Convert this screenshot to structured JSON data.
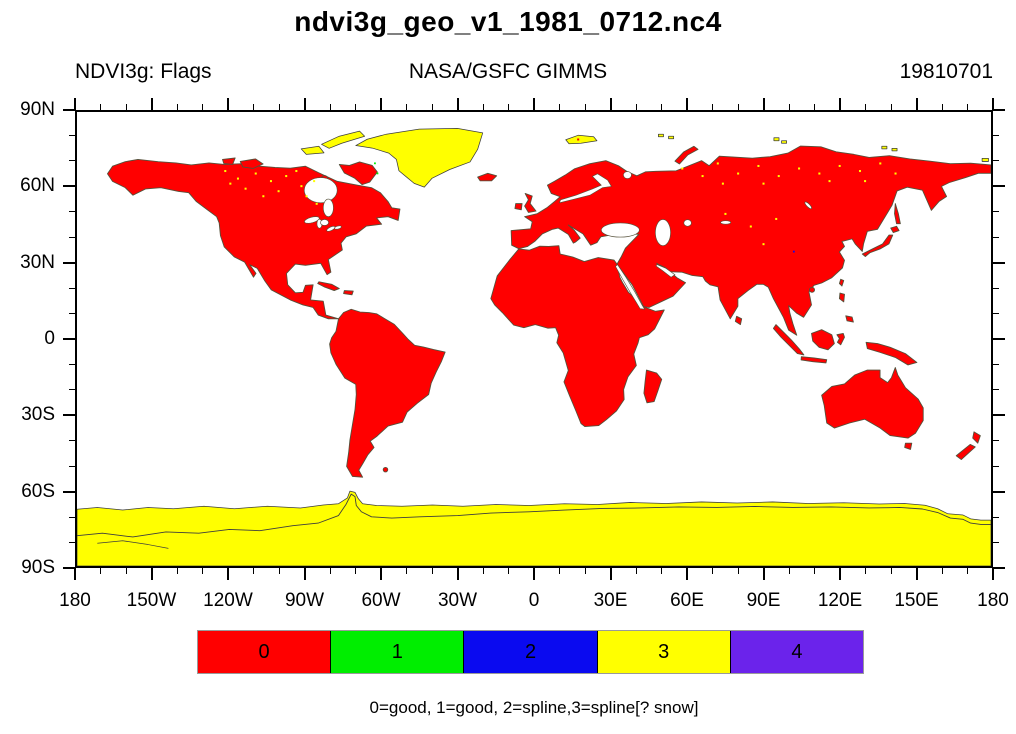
{
  "title": "ndvi3g_geo_v1_1981_0712.nc4",
  "header": {
    "left_label": "NDVI3g: Flags",
    "center_label": "NASA/GSFC GIMMS",
    "right_label": "19810701"
  },
  "axes": {
    "x": {
      "tick_labels": [
        "180",
        "150W",
        "120W",
        "90W",
        "60W",
        "30W",
        "0",
        "30E",
        "60E",
        "90E",
        "120E",
        "150E",
        "180"
      ],
      "major_step_deg": 30,
      "minor_step_deg": 10
    },
    "y": {
      "tick_labels": [
        "90N",
        "60N",
        "30N",
        "0",
        "30S",
        "60S",
        "90S"
      ],
      "major_step_deg": 30,
      "minor_step_deg": 10
    }
  },
  "legend": {
    "entries": [
      {
        "label": "0",
        "color": "#FF0000"
      },
      {
        "label": "1",
        "color": "#00EE00"
      },
      {
        "label": "2",
        "color": "#0A0AF0"
      },
      {
        "label": "3",
        "color": "#FFFF00"
      },
      {
        "label": "4",
        "color": "#6B23EB"
      }
    ]
  },
  "caption": "0=good, 1=good, 2=spline,3=spline[? snow]",
  "map_colors": {
    "land_flag0": "#FF0000",
    "snow_flag3": "#FFFF00",
    "ocean": "#FFFFFF",
    "coastline": "#55503A"
  },
  "chart_data": {
    "type": "heatmap",
    "title": "ndvi3g_geo_v1_1981_0712.nc4",
    "left_string": "NDVI3g: Flags",
    "center_string": "NASA/GSFC GIMMS",
    "right_string": "19810701",
    "projection": "equirectangular world map (cylindrical equidistant)",
    "xlim": [
      -180,
      180
    ],
    "ylim": [
      -90,
      90
    ],
    "x_tick_labels": [
      "180",
      "150W",
      "120W",
      "90W",
      "60W",
      "30W",
      "0",
      "30E",
      "60E",
      "90E",
      "120E",
      "150E",
      "180"
    ],
    "y_tick_labels": [
      "90N",
      "60N",
      "30N",
      "0",
      "30S",
      "60S",
      "90S"
    ],
    "grid": false,
    "legend_position": "horizontal label bar below map",
    "categories": [
      "0",
      "1",
      "2",
      "3",
      "4"
    ],
    "category_colors": [
      "#FF0000",
      "#00EE00",
      "#0A0AF0",
      "#FFFF00",
      "#6B23EB"
    ],
    "category_meanings": "0=good, 1=good, 2=spline,3=spline[? snow]",
    "values_summary": "Vegetated land masses flagged 0 (red); Greenland, Antarctica, sea-ice margin and high-Arctic islands flagged 3 (yellow) with scattered yellow flag-3 speckles across northern Canada and Siberia; oceans white (no data)"
  }
}
